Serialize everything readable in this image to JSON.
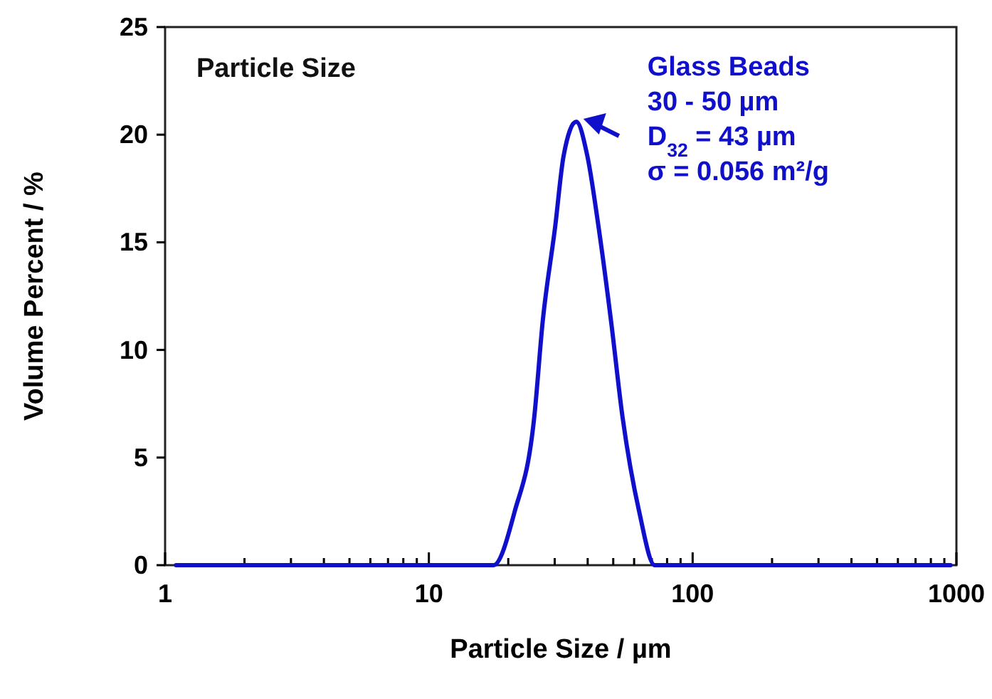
{
  "chart_data": {
    "type": "line",
    "xlabel": "Particle Size / µm",
    "ylabel": "Volume Percent / %",
    "log": "x",
    "xlim": [
      1,
      1000
    ],
    "ylim": [
      0,
      25
    ],
    "xticks": [
      1,
      {
        "value": 2,
        "label": null
      },
      {
        "value": 3,
        "label": null
      },
      {
        "value": 4,
        "label": null
      },
      {
        "value": 5,
        "label": null
      },
      {
        "value": 6,
        "label": null
      },
      {
        "value": 7,
        "label": null
      },
      {
        "value": 8,
        "label": null
      },
      {
        "value": 9,
        "label": null
      },
      10,
      {
        "value": 20,
        "label": null
      },
      {
        "value": 30,
        "label": null
      },
      {
        "value": 40,
        "label": null
      },
      {
        "value": 50,
        "label": null
      },
      {
        "value": 60,
        "label": null
      },
      {
        "value": 70,
        "label": null
      },
      {
        "value": 80,
        "label": null
      },
      {
        "value": 90,
        "label": null
      },
      100,
      {
        "value": 200,
        "label": null
      },
      {
        "value": 300,
        "label": null
      },
      {
        "value": 400,
        "label": null
      },
      {
        "value": 500,
        "label": null
      },
      {
        "value": 600,
        "label": null
      },
      {
        "value": 700,
        "label": null
      },
      {
        "value": 800,
        "label": null
      },
      {
        "value": 900,
        "label": null
      },
      1000
    ],
    "yticks": [
      0,
      5,
      10,
      15,
      20,
      25
    ],
    "grid": false,
    "marker": "none",
    "line_style": "solid",
    "x": [
      1.1,
      17.6,
      21.1,
      25.1,
      27.0,
      30.1,
      32.4,
      36.2,
      39.9,
      44.0,
      49.1,
      54.2,
      62.8,
      71.8,
      950
    ],
    "series": [
      {
        "color": "#1010cc",
        "values": [
          0,
          0,
          2.45,
          6.9,
          11.3,
          15.7,
          19.0,
          20.6,
          19.0,
          15.7,
          11.3,
          6.9,
          2.45,
          0,
          0
        ]
      }
    ],
    "annotations": [
      "Particle Size",
      {
        "text": "Glass Beads\n30 - 50 µm\nD$_{32}$ = 43 µm\nσ = 0.056 m²/g",
        "x": 36.2,
        "y": 20.6
      }
    ]
  }
}
